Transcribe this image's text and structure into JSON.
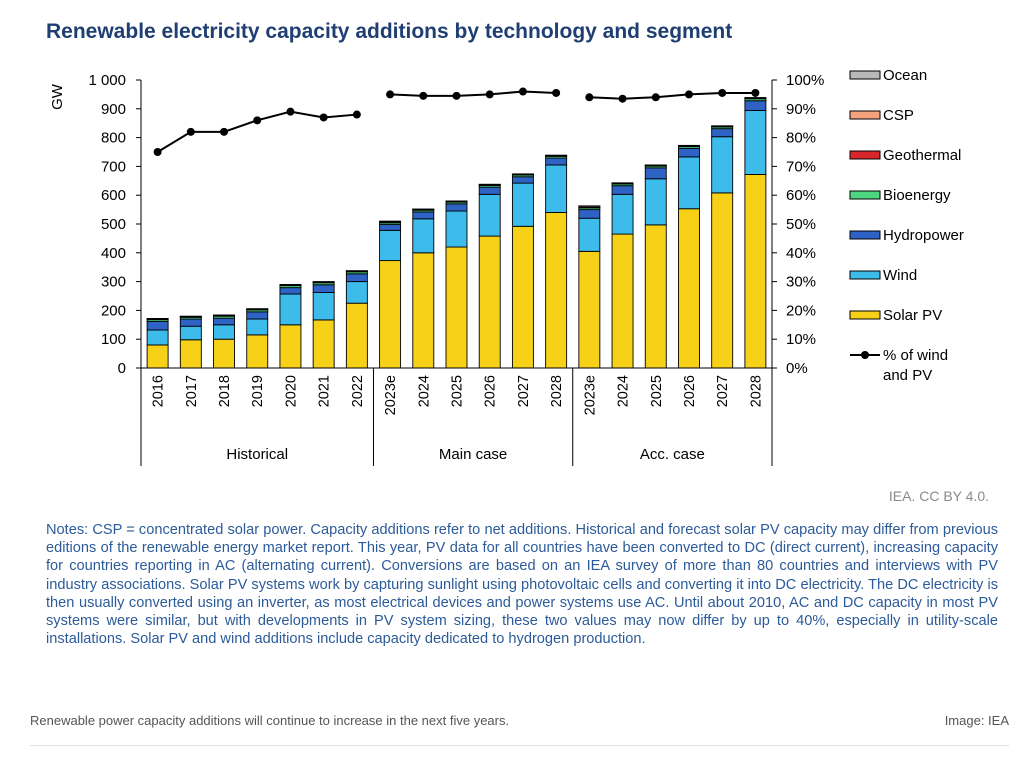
{
  "figure": {
    "title": "Renewable electricity capacity additions by technology and segment",
    "credit": "IEA. CC BY 4.0.",
    "notes": "Notes: CSP = concentrated solar power. Capacity additions refer to net additions. Historical and forecast solar PV capacity may differ from previous editions of the renewable energy market report. This year, PV data for all countries have been converted to DC (direct current), increasing capacity for countries reporting in AC (alternating current). Conversions are based on an IEA survey of more than 80 countries and interviews with PV industry associations. Solar PV systems work by capturing sunlight using photovoltaic cells and converting it into DC electricity. The DC electricity is then usually converted using an inverter, as most electrical devices and power systems use AC. Until about 2010, AC and DC capacity in most PV systems were similar, but with developments in PV system sizing, these two values may now differ by up to 40%, especially in utility-scale installations. Solar PV and wind additions include capacity dedicated to hydrogen production."
  },
  "caption": {
    "text": "Renewable power capacity additions will continue to increase in the next five years.",
    "source": "Image: IEA"
  },
  "chart_data": {
    "type": "bar",
    "stacked": true,
    "title": "Renewable electricity capacity additions by technology and segment",
    "ylabel": "GW",
    "ylim": [
      0,
      1000
    ],
    "yticks": [
      0,
      100,
      200,
      300,
      400,
      500,
      600,
      700,
      800,
      900,
      1000
    ],
    "ytick_labels": [
      "0",
      "100",
      "200",
      "300",
      "400",
      "500",
      "600",
      "700",
      "800",
      "900",
      "1 000"
    ],
    "y2lim": [
      0,
      100
    ],
    "y2ticks": [
      0,
      10,
      20,
      30,
      40,
      50,
      60,
      70,
      80,
      90,
      100
    ],
    "y2tick_labels": [
      "0%",
      "10%",
      "20%",
      "30%",
      "40%",
      "50%",
      "60%",
      "70%",
      "80%",
      "90%",
      "100%"
    ],
    "categories": [
      "2016",
      "2017",
      "2018",
      "2019",
      "2020",
      "2021",
      "2022",
      "2023e",
      "2024",
      "2025",
      "2026",
      "2027",
      "2028",
      "2023e",
      "2024",
      "2025",
      "2026",
      "2027",
      "2028"
    ],
    "groups": [
      {
        "name": "Historical",
        "count": 7
      },
      {
        "name": "Main case",
        "count": 6
      },
      {
        "name": "Acc. case",
        "count": 6
      }
    ],
    "series": [
      {
        "name": "Solar PV",
        "color": "#f7d117",
        "values": [
          80,
          98,
          100,
          115,
          150,
          167,
          225,
          373,
          400,
          420,
          458,
          492,
          540,
          405,
          465,
          497,
          553,
          608,
          672
        ]
      },
      {
        "name": "Wind",
        "color": "#3dbbea",
        "values": [
          52,
          47,
          50,
          55,
          107,
          95,
          75,
          105,
          118,
          125,
          145,
          150,
          165,
          115,
          138,
          160,
          180,
          195,
          222
        ]
      },
      {
        "name": "Hydropower",
        "color": "#2e62c4",
        "values": [
          30,
          25,
          23,
          25,
          22,
          27,
          27,
          20,
          24,
          25,
          25,
          22,
          24,
          30,
          30,
          38,
          30,
          28,
          34
        ]
      },
      {
        "name": "Bioenergy",
        "color": "#4cd681",
        "values": [
          6,
          6,
          7,
          7,
          7,
          7,
          7,
          6,
          6,
          6,
          6,
          6,
          6,
          6,
          6,
          6,
          6,
          6,
          7
        ]
      },
      {
        "name": "Geothermal",
        "color": "#d9262c",
        "values": [
          2,
          2,
          2,
          2,
          2,
          2,
          2,
          2,
          2,
          2,
          2,
          2,
          2,
          2,
          2,
          2,
          2,
          2,
          2
        ]
      },
      {
        "name": "CSP",
        "color": "#f3a47e",
        "values": [
          1,
          1,
          1,
          1,
          1,
          1,
          1,
          3,
          1,
          1,
          1,
          1,
          1,
          4,
          1,
          1,
          1,
          1,
          1
        ]
      },
      {
        "name": "Ocean",
        "color": "#b9b9b9",
        "values": [
          1,
          1,
          1,
          1,
          1,
          1,
          1,
          1,
          1,
          1,
          1,
          1,
          1,
          1,
          1,
          1,
          1,
          1,
          1
        ]
      }
    ],
    "line_series": {
      "name": "% of wind and PV",
      "color": "#000000",
      "axis": "right",
      "values": [
        75,
        82,
        82,
        86,
        89,
        87,
        88,
        95,
        94.5,
        94.5,
        95,
        96,
        95.5,
        94,
        93.5,
        94,
        95,
        95.5,
        95.5
      ]
    },
    "legend": {
      "placement": "right",
      "order": [
        "Ocean",
        "CSP",
        "Geothermal",
        "Bioenergy",
        "Hydropower",
        "Wind",
        "Solar PV",
        "% of wind and PV"
      ]
    },
    "grid": false
  }
}
